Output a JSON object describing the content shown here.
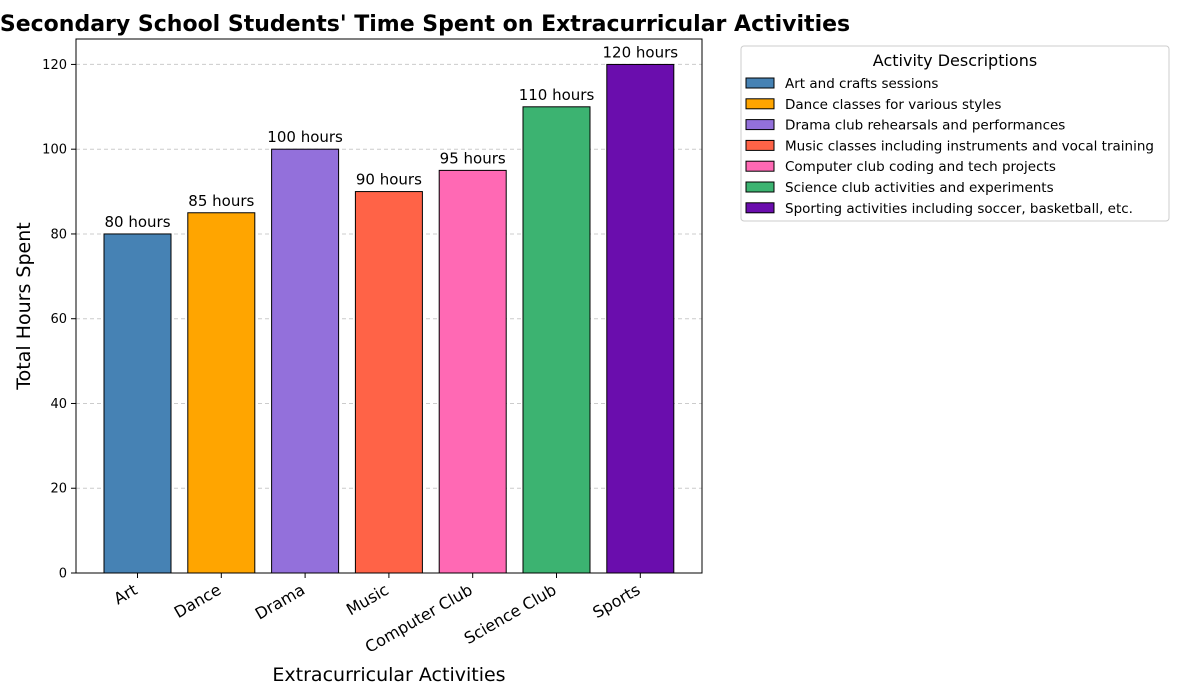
{
  "chart_data": {
    "type": "bar",
    "title": "Secondary School Students' Time Spent on Extracurricular Activities",
    "xlabel": "Extracurricular Activities",
    "ylabel": "Total Hours Spent",
    "categories": [
      "Art",
      "Dance",
      "Drama",
      "Music",
      "Computer Club",
      "Science Club",
      "Sports"
    ],
    "values": [
      80,
      85,
      100,
      90,
      95,
      110,
      120
    ],
    "value_labels": [
      "80 hours",
      "85 hours",
      "100 hours",
      "90 hours",
      "95 hours",
      "110 hours",
      "120 hours"
    ],
    "colors": [
      "#4682B4",
      "#FFA500",
      "#9370DB",
      "#FF6347",
      "#FF69B4",
      "#3CB371",
      "#6A0DAD"
    ],
    "ylim": [
      0,
      126
    ],
    "yticks": [
      0,
      20,
      40,
      60,
      80,
      100,
      120
    ],
    "grid": "y-dashed",
    "legend": {
      "title": "Activity Descriptions",
      "placement": "outside-upper-right",
      "entries": [
        "Art and crafts sessions",
        "Dance classes for various styles",
        "Drama club rehearsals and performances",
        "Music classes including instruments and vocal training",
        "Computer club coding and tech projects",
        "Science club activities and experiments",
        "Sporting activities including soccer, basketball, etc."
      ]
    }
  }
}
